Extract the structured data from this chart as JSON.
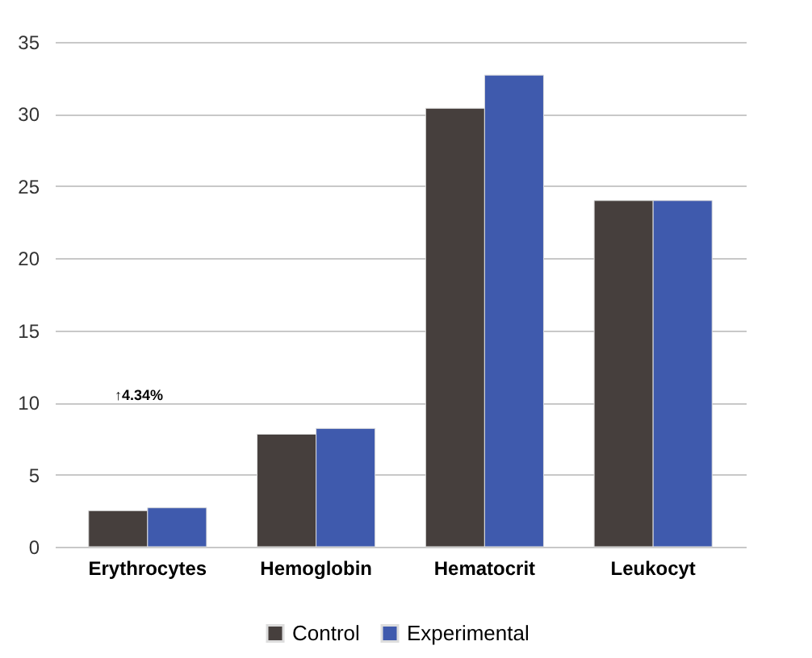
{
  "chart_data": {
    "type": "bar",
    "categories": [
      "Erythrocytes",
      "Hemoglobin",
      "Hematocrit",
      "Leukocyt"
    ],
    "series": [
      {
        "name": "Control",
        "color": "#463f3d",
        "values": [
          2.5,
          7.8,
          30.4,
          24.0
        ]
      },
      {
        "name": "Experimental",
        "color": "#3f5aad",
        "values": [
          2.7,
          8.2,
          32.7,
          24.0
        ]
      }
    ],
    "ylim": [
      0,
      35
    ],
    "yticks": [
      0,
      5,
      10,
      15,
      20,
      25,
      30,
      35
    ],
    "grid": "y",
    "legend": "bottom",
    "annotations": [
      "↑4.34%"
    ]
  }
}
